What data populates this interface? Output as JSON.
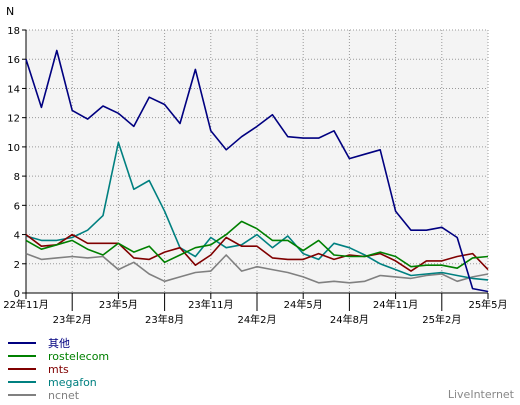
{
  "watermark": "LiveInternet",
  "chart_data": {
    "type": "line",
    "ylabel": "N",
    "ylim": [
      0,
      18
    ],
    "yticks": [
      0,
      2,
      4,
      6,
      8,
      10,
      12,
      14,
      16,
      18
    ],
    "grid": true,
    "legend_position": "bottom-left",
    "x": [
      "22-11",
      "22-12",
      "23-01",
      "23-02",
      "23-03",
      "23-04",
      "23-05",
      "23-06",
      "23-07",
      "23-08",
      "23-09",
      "23-10",
      "23-11",
      "23-12",
      "24-01",
      "24-02",
      "24-03",
      "24-04",
      "24-05",
      "24-06",
      "24-07",
      "24-08",
      "24-09",
      "24-10",
      "24-11",
      "24-12",
      "25-01",
      "25-02",
      "25-03",
      "25-04",
      "25-05"
    ],
    "xticks": [
      {
        "index": 0,
        "label": "22年11月",
        "row": 1
      },
      {
        "index": 3,
        "label": "23年2月",
        "row": 2
      },
      {
        "index": 6,
        "label": "23年5月",
        "row": 1
      },
      {
        "index": 9,
        "label": "23年8月",
        "row": 2
      },
      {
        "index": 12,
        "label": "23年11月",
        "row": 1
      },
      {
        "index": 15,
        "label": "24年2月",
        "row": 2
      },
      {
        "index": 18,
        "label": "24年5月",
        "row": 1
      },
      {
        "index": 21,
        "label": "24年8月",
        "row": 2
      },
      {
        "index": 24,
        "label": "24年11月",
        "row": 1
      },
      {
        "index": 27,
        "label": "25年2月",
        "row": 2
      },
      {
        "index": 30,
        "label": "25年5月",
        "row": 1
      }
    ],
    "series": [
      {
        "name": "其他",
        "color": "#000080",
        "values": [
          16.0,
          12.7,
          16.6,
          12.5,
          11.9,
          12.8,
          12.3,
          11.4,
          13.4,
          12.9,
          11.6,
          15.3,
          11.1,
          9.8,
          10.7,
          11.4,
          12.2,
          10.7,
          10.6,
          10.6,
          11.1,
          9.2,
          9.5,
          9.8,
          5.6,
          4.3,
          4.3,
          4.5,
          3.8,
          0.3,
          0.1
        ]
      },
      {
        "name": "rostelecom",
        "color": "#008000",
        "values": [
          3.6,
          3.0,
          3.3,
          3.6,
          3.0,
          2.6,
          3.4,
          2.8,
          3.2,
          2.1,
          2.6,
          3.1,
          3.3,
          4.0,
          4.9,
          4.4,
          3.6,
          3.6,
          2.9,
          3.6,
          2.6,
          2.5,
          2.5,
          2.8,
          2.5,
          1.8,
          1.9,
          1.9,
          1.7,
          2.4,
          2.5
        ]
      },
      {
        "name": "mts",
        "color": "#800000",
        "values": [
          4.0,
          3.2,
          3.3,
          4.0,
          3.4,
          3.4,
          3.4,
          2.4,
          2.3,
          2.8,
          3.1,
          1.9,
          2.6,
          3.8,
          3.2,
          3.2,
          2.4,
          2.3,
          2.3,
          2.7,
          2.3,
          2.6,
          2.5,
          2.7,
          2.2,
          1.5,
          2.2,
          2.2,
          2.5,
          2.7,
          1.6
        ]
      },
      {
        "name": "megafon",
        "color": "#008080",
        "values": [
          3.9,
          3.6,
          3.6,
          3.8,
          4.3,
          5.3,
          10.3,
          7.1,
          7.7,
          5.6,
          3.1,
          2.5,
          3.8,
          3.1,
          3.3,
          4.0,
          3.1,
          3.9,
          2.7,
          2.3,
          3.4,
          3.1,
          2.6,
          2.0,
          1.6,
          1.2,
          1.3,
          1.4,
          1.2,
          1.0,
          0.9
        ]
      },
      {
        "name": "ncnet",
        "color": "#808080",
        "values": [
          2.7,
          2.3,
          2.4,
          2.5,
          2.4,
          2.5,
          1.6,
          2.1,
          1.3,
          0.8,
          1.1,
          1.4,
          1.5,
          2.6,
          1.5,
          1.8,
          1.6,
          1.4,
          1.1,
          0.7,
          0.8,
          0.7,
          0.8,
          1.2,
          1.1,
          1.0,
          1.2,
          1.3,
          0.8,
          1.1,
          1.3
        ]
      }
    ]
  }
}
